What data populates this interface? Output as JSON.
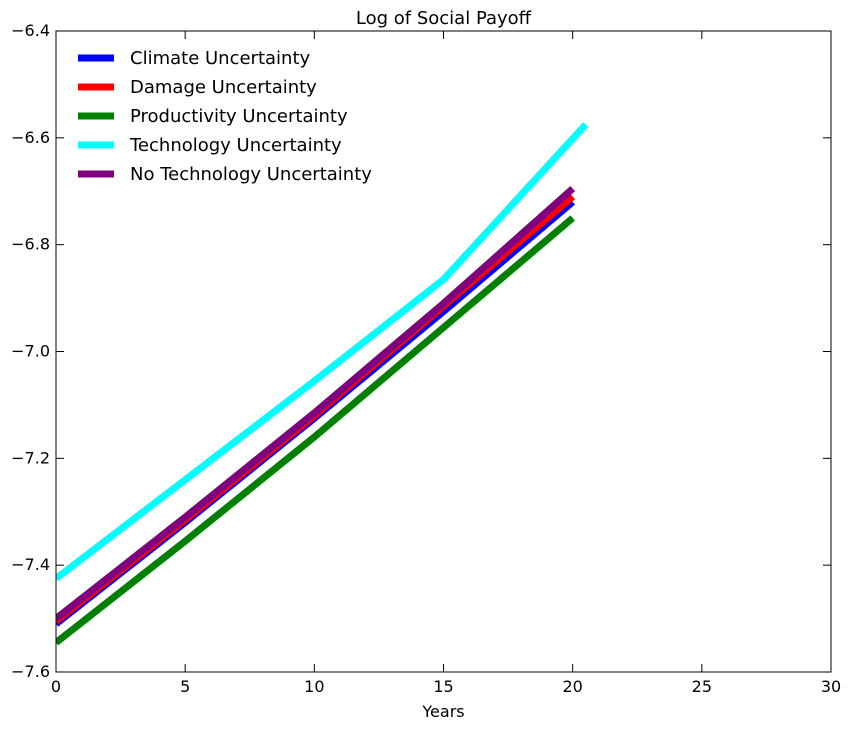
{
  "chart_data": {
    "type": "line",
    "title": "Log of Social Payoff",
    "xlabel": "Years",
    "ylabel": "",
    "xlim": [
      0,
      30
    ],
    "ylim": [
      -7.6,
      -6.4
    ],
    "xticks": [
      0,
      5,
      10,
      15,
      20,
      25,
      30
    ],
    "xtick_labels": [
      "0",
      "5",
      "10",
      "15",
      "20",
      "25",
      "30"
    ],
    "yticks": [
      -7.6,
      -7.4,
      -7.2,
      -7.0,
      -6.8,
      -6.6,
      -6.4
    ],
    "ytick_labels": [
      "−7.6",
      "−7.4",
      "−7.2",
      "−7.0",
      "−6.8",
      "−6.6",
      "−6.4"
    ],
    "grid": false,
    "legend_position": "top-left",
    "series": [
      {
        "name": "Climate Uncertainty",
        "color": "#0000ff",
        "x": [
          0,
          5,
          10,
          15,
          20
        ],
        "y": [
          -7.51,
          -7.32,
          -7.125,
          -6.925,
          -6.72
        ]
      },
      {
        "name": "Damage Uncertainty",
        "color": "#ff0000",
        "x": [
          0,
          5,
          10,
          15,
          20
        ],
        "y": [
          -7.505,
          -7.315,
          -7.12,
          -6.915,
          -6.71
        ]
      },
      {
        "name": "Productivity Uncertainty",
        "color": "#008000",
        "x": [
          0,
          5,
          10,
          15,
          20
        ],
        "y": [
          -7.545,
          -7.355,
          -7.16,
          -6.955,
          -6.75
        ]
      },
      {
        "name": "Technology Uncertainty",
        "color": "#00ffff",
        "x": [
          0,
          5,
          10,
          15,
          20.5
        ],
        "y": [
          -7.425,
          -7.24,
          -7.055,
          -6.865,
          -6.575
        ]
      },
      {
        "name": "No Technology Uncertainty",
        "color": "#800080",
        "x": [
          0,
          5,
          10,
          15,
          20
        ],
        "y": [
          -7.5,
          -7.31,
          -7.115,
          -6.91,
          -6.695
        ]
      }
    ]
  }
}
